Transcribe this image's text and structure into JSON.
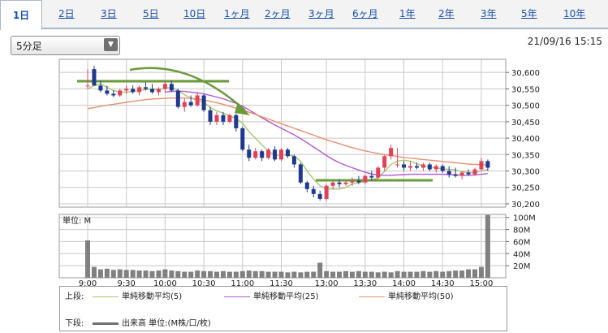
{
  "tabs": [
    {
      "label": "1日",
      "active": true
    },
    {
      "label": "2日"
    },
    {
      "label": "3日"
    },
    {
      "label": "5日"
    },
    {
      "label": "10日"
    },
    {
      "label": "1ヶ月"
    },
    {
      "label": "2ヶ月"
    },
    {
      "label": "3ヶ月"
    },
    {
      "label": "6ヶ月"
    },
    {
      "label": "1年"
    },
    {
      "label": "2年"
    },
    {
      "label": "3年"
    },
    {
      "label": "5年"
    },
    {
      "label": "10年"
    }
  ],
  "interval_select": {
    "value": "5分足"
  },
  "timestamp": "21/09/16 15:15",
  "legend": {
    "upper_label": "上段:",
    "lower_label": "下段:",
    "ma5": "単純移動平均(5)",
    "ma25": "単純移動平均(25)",
    "ma50": "単純移動平均(50)",
    "volume": "出来高 単位:(M株/口/枚)"
  },
  "colors": {
    "up": "#e0425a",
    "down": "#1f3a8c",
    "ma5": "#a8c870",
    "ma25": "#b05ad0",
    "ma50": "#e89070",
    "volume": "#808080",
    "annotation": "#6a9a3a",
    "grid": "#c8c8c8"
  },
  "chart_data": [
    {
      "type": "candlestick",
      "title": "",
      "ylim": [
        30190,
        30640
      ],
      "y_ticks": [
        "30,600",
        "30,550",
        "30,500",
        "30,450",
        "30,400",
        "30,350",
        "30,300",
        "30,250",
        "30,200"
      ],
      "x_ticks": [
        "9:00",
        "9:30",
        "10:00",
        "10:30",
        "11:00",
        "11:30",
        "13:00",
        "13:30",
        "14:00",
        "14:30",
        "15:00"
      ],
      "candles_ohlc": [
        [
          30560,
          30610,
          30550,
          30560
        ],
        [
          30610,
          30620,
          30560,
          30560
        ],
        [
          30560,
          30575,
          30540,
          30545
        ],
        [
          30545,
          30560,
          30530,
          30535
        ],
        [
          30535,
          30545,
          30525,
          30530
        ],
        [
          30530,
          30550,
          30525,
          30545
        ],
        [
          30545,
          30560,
          30535,
          30550
        ],
        [
          30550,
          30560,
          30535,
          30540
        ],
        [
          30540,
          30560,
          30530,
          30555
        ],
        [
          30555,
          30570,
          30545,
          30550
        ],
        [
          30550,
          30565,
          30535,
          30540
        ],
        [
          30540,
          30555,
          30530,
          30550
        ],
        [
          30550,
          30575,
          30540,
          30565
        ],
        [
          30565,
          30575,
          30540,
          30545
        ],
        [
          30545,
          30550,
          30490,
          30495
        ],
        [
          30495,
          30520,
          30480,
          30510
        ],
        [
          30510,
          30530,
          30495,
          30500
        ],
        [
          30500,
          30540,
          30495,
          30530
        ],
        [
          30530,
          30535,
          30480,
          30485
        ],
        [
          30485,
          30495,
          30440,
          30450
        ],
        [
          30450,
          30480,
          30440,
          30470
        ],
        [
          30470,
          30480,
          30440,
          30450
        ],
        [
          30450,
          30475,
          30445,
          30470
        ],
        [
          30470,
          30475,
          30420,
          30430
        ],
        [
          30430,
          30435,
          30360,
          30365
        ],
        [
          30365,
          30380,
          30330,
          30340
        ],
        [
          30340,
          30370,
          30335,
          30360
        ],
        [
          30360,
          30365,
          30330,
          30340
        ],
        [
          30340,
          30370,
          30335,
          30365
        ],
        [
          30365,
          30375,
          30330,
          30335
        ],
        [
          30335,
          30370,
          30330,
          30365
        ],
        [
          30365,
          30370,
          30340,
          30345
        ],
        [
          30345,
          30350,
          30310,
          30320
        ],
        [
          30320,
          30325,
          30260,
          30265
        ],
        [
          30265,
          30270,
          30235,
          30245
        ],
        [
          30245,
          30255,
          30220,
          30230
        ],
        [
          30230,
          30240,
          30210,
          30215
        ],
        [
          30215,
          30260,
          30210,
          30255
        ],
        [
          30255,
          30270,
          30245,
          30265
        ],
        [
          30265,
          30275,
          30250,
          30260
        ],
        [
          30260,
          30270,
          30255,
          30265
        ],
        [
          30265,
          30280,
          30255,
          30270
        ],
        [
          30270,
          30285,
          30260,
          30265
        ],
        [
          30265,
          30290,
          30260,
          30285
        ],
        [
          30285,
          30300,
          30270,
          30280
        ],
        [
          30280,
          30315,
          30275,
          30310
        ],
        [
          30310,
          30350,
          30300,
          30345
        ],
        [
          30345,
          30380,
          30335,
          30370
        ],
        [
          30320,
          30370,
          30310,
          30320
        ],
        [
          30320,
          30330,
          30300,
          30310
        ],
        [
          30310,
          30330,
          30300,
          30315
        ],
        [
          30315,
          30325,
          30305,
          30310
        ],
        [
          30310,
          30325,
          30300,
          30320
        ],
        [
          30320,
          30325,
          30300,
          30305
        ],
        [
          30305,
          30320,
          30295,
          30315
        ],
        [
          30315,
          30320,
          30295,
          30300
        ],
        [
          30300,
          30315,
          30280,
          30290
        ],
        [
          30290,
          30310,
          30280,
          30285
        ],
        [
          30285,
          30300,
          30275,
          30295
        ],
        [
          30295,
          30305,
          30285,
          30290
        ],
        [
          30290,
          30310,
          30285,
          30305
        ],
        [
          30305,
          30340,
          30300,
          30330
        ],
        [
          30330,
          30335,
          30300,
          30310
        ]
      ],
      "series": [
        {
          "name": "単純移動平均(5)",
          "values": [
            30550,
            30560,
            30565,
            30555,
            30545,
            30540,
            30540,
            30542,
            30545,
            30548,
            30548,
            30547,
            30552,
            30555,
            30545,
            30532,
            30522,
            30515,
            30510,
            30493,
            30483,
            30476,
            30468,
            30460,
            30445,
            30420,
            30400,
            30380,
            30360,
            30348,
            30348,
            30350,
            30345,
            30330,
            30300,
            30275,
            30255,
            30245,
            30245,
            30245,
            30250,
            30260,
            30265,
            30268,
            30272,
            30280,
            30298,
            30320,
            30330,
            30333,
            30330,
            30322,
            30315,
            30312,
            30310,
            30306,
            30305,
            30303,
            30298,
            30295,
            30295,
            30300,
            30305
          ]
        },
        {
          "name": "単純移動平均(25)",
          "values": [
            null,
            null,
            null,
            null,
            null,
            null,
            null,
            null,
            null,
            null,
            null,
            null,
            30540,
            30542,
            30543,
            30542,
            30540,
            30538,
            30535,
            30530,
            30525,
            30520,
            30513,
            30506,
            30497,
            30486,
            30474,
            30462,
            30451,
            30440,
            30430,
            30420,
            30410,
            30398,
            30386,
            30373,
            30360,
            30347,
            30335,
            30325,
            30317,
            30310,
            30303,
            30296,
            30291,
            30288,
            30287,
            30287,
            30288,
            30289,
            30290,
            30290,
            30290,
            30290,
            30290,
            30290,
            30289,
            30288,
            30287,
            30287,
            30288,
            30290,
            30292
          ]
        },
        {
          "name": "単純移動平均(50)",
          "values": [
            30490,
            30493,
            30497,
            30500,
            30503,
            30506,
            30509,
            30512,
            30515,
            30517,
            30519,
            30520,
            30521,
            30522,
            30522,
            30522,
            30521,
            30519,
            30516,
            30512,
            30508,
            30503,
            30497,
            30491,
            30485,
            30479,
            30472,
            30465,
            30458,
            30451,
            30444,
            30437,
            30430,
            30423,
            30416,
            30409,
            30402,
            30395,
            30389,
            30383,
            30377,
            30371,
            30366,
            30361,
            30357,
            30353,
            30350,
            30347,
            30344,
            30341,
            30339,
            30337,
            30335,
            30333,
            30331,
            30329,
            30327,
            30325,
            30323,
            30321,
            30320,
            30319,
            30318
          ]
        }
      ]
    },
    {
      "type": "bar",
      "title": "",
      "ylabel": "単位: M",
      "ylim": [
        0,
        105
      ],
      "y_ticks": [
        "100M",
        "80M",
        "60M",
        "40M",
        "20M"
      ],
      "values": [
        62,
        18,
        14,
        15,
        13,
        14,
        13,
        13,
        12,
        12,
        11,
        12,
        14,
        12,
        11,
        10,
        10,
        12,
        11,
        11,
        10,
        11,
        10,
        10,
        11,
        12,
        11,
        11,
        10,
        10,
        10,
        9,
        10,
        9,
        10,
        10,
        25,
        11,
        10,
        10,
        11,
        10,
        11,
        10,
        10,
        9,
        10,
        9,
        11,
        10,
        10,
        10,
        11,
        10,
        11,
        10,
        11,
        12,
        12,
        14,
        14,
        18,
        104
      ]
    }
  ]
}
